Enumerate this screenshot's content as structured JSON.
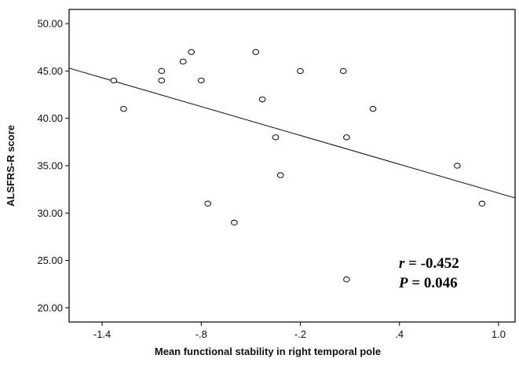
{
  "chart_data": {
    "type": "scatter",
    "title": "",
    "xlabel": "Mean functional stability in right temporal pole",
    "ylabel": "ALSFRS-R score",
    "xlim": [
      -1.6,
      1.1
    ],
    "ylim": [
      18.5,
      51.5
    ],
    "x_ticks": [
      -1.4,
      -0.8,
      -0.2,
      0.4,
      1.0
    ],
    "x_tick_labels": [
      "-1.4",
      "-.8",
      "-.2",
      ".4",
      "1.0"
    ],
    "y_ticks": [
      20,
      25,
      30,
      35,
      40,
      45,
      50
    ],
    "y_tick_labels": [
      "20.00",
      "25.00",
      "30.00",
      "35.00",
      "40.00",
      "45.00",
      "50.00"
    ],
    "points": [
      {
        "x": -1.33,
        "y": 44
      },
      {
        "x": -1.27,
        "y": 41
      },
      {
        "x": -1.04,
        "y": 45
      },
      {
        "x": -1.04,
        "y": 44
      },
      {
        "x": -0.91,
        "y": 46
      },
      {
        "x": -0.86,
        "y": 47
      },
      {
        "x": -0.8,
        "y": 44
      },
      {
        "x": -0.76,
        "y": 31
      },
      {
        "x": -0.6,
        "y": 29
      },
      {
        "x": -0.47,
        "y": 47
      },
      {
        "x": -0.43,
        "y": 42
      },
      {
        "x": -0.35,
        "y": 38
      },
      {
        "x": -0.32,
        "y": 34
      },
      {
        "x": -0.2,
        "y": 45
      },
      {
        "x": 0.06,
        "y": 45
      },
      {
        "x": 0.08,
        "y": 38
      },
      {
        "x": 0.08,
        "y": 23
      },
      {
        "x": 0.24,
        "y": 41
      },
      {
        "x": 0.75,
        "y": 35
      },
      {
        "x": 0.9,
        "y": 31
      }
    ],
    "fit_line": {
      "x": [
        -1.6,
        1.1
      ],
      "y": [
        45.3,
        31.6
      ]
    },
    "annotation": {
      "r_symbol": "r",
      "r_value": " = -0.452",
      "p_symbol": "P",
      "p_value": " = 0.046"
    }
  }
}
